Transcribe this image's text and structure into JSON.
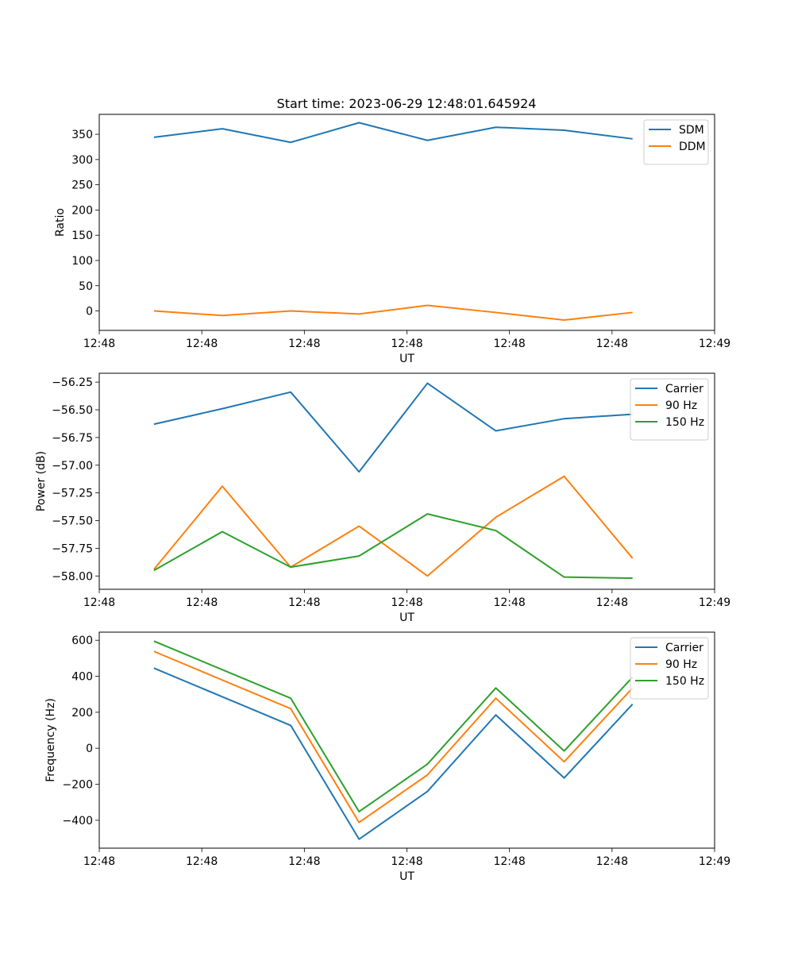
{
  "title": "Start time: 2023-06-29 12:48:01.645924",
  "colors": {
    "blue": "#1f77b4",
    "orange": "#ff7f0e",
    "green": "#2ca02c"
  },
  "chart_data": [
    {
      "type": "line",
      "title": "Start time: 2023-06-29 12:48:01.645924",
      "xlabel": "UT",
      "ylabel": "Ratio",
      "x": [
        1,
        2,
        3,
        4,
        5,
        6,
        7,
        8
      ],
      "xlim": [
        0.2,
        9.2
      ],
      "xticks": [
        {
          "value": 0.2,
          "label": "12:48"
        },
        {
          "value": 1.7,
          "label": "12:48"
        },
        {
          "value": 3.2,
          "label": "12:48"
        },
        {
          "value": 4.7,
          "label": "12:48"
        },
        {
          "value": 6.2,
          "label": "12:48"
        },
        {
          "value": 7.7,
          "label": "12:48"
        },
        {
          "value": 9.2,
          "label": "12:49"
        }
      ],
      "ylim": [
        -38.5,
        389.5
      ],
      "yticks": [
        0,
        50,
        100,
        150,
        200,
        250,
        300,
        350
      ],
      "legend": "top-right",
      "series": [
        {
          "name": "SDM",
          "color": "#1f77b4",
          "values": [
            344,
            361,
            334,
            373,
            338,
            364,
            358,
            341
          ]
        },
        {
          "name": "DDM",
          "color": "#ff7f0e",
          "values": [
            0,
            -9,
            0,
            -6,
            11,
            -3,
            -18,
            -3
          ]
        }
      ]
    },
    {
      "type": "line",
      "xlabel": "UT",
      "ylabel": "Power (dB)",
      "x": [
        1,
        2,
        3,
        4,
        5,
        6,
        7,
        8
      ],
      "xlim": [
        0.2,
        9.2
      ],
      "xticks": [
        {
          "value": 0.2,
          "label": "12:48"
        },
        {
          "value": 1.7,
          "label": "12:48"
        },
        {
          "value": 3.2,
          "label": "12:48"
        },
        {
          "value": 4.7,
          "label": "12:48"
        },
        {
          "value": 6.2,
          "label": "12:48"
        },
        {
          "value": 7.7,
          "label": "12:48"
        },
        {
          "value": 9.2,
          "label": "12:49"
        }
      ],
      "ylim": [
        -58.12,
        -56.17
      ],
      "yticks": [
        -58.0,
        -57.75,
        -57.5,
        -57.25,
        -57.0,
        -56.75,
        -56.5,
        -56.25
      ],
      "yticklabels": [
        "−58.00",
        "−57.75",
        "−57.50",
        "−57.25",
        "−57.00",
        "−56.75",
        "−56.50",
        "−56.25"
      ],
      "legend": "top-right",
      "series": [
        {
          "name": "Carrier",
          "color": "#1f77b4",
          "values": [
            -56.63,
            -56.49,
            -56.34,
            -57.06,
            -56.26,
            -56.69,
            -56.58,
            -56.54
          ]
        },
        {
          "name": "90 Hz",
          "color": "#ff7f0e",
          "values": [
            -57.94,
            -57.19,
            -57.92,
            -57.55,
            -58.0,
            -57.47,
            -57.1,
            -57.84
          ]
        },
        {
          "name": "150 Hz",
          "color": "#2ca02c",
          "values": [
            -57.95,
            -57.6,
            -57.92,
            -57.82,
            -57.44,
            -57.59,
            -58.01,
            -58.02
          ]
        }
      ]
    },
    {
      "type": "line",
      "xlabel": "UT",
      "ylabel": "Frequency (Hz)",
      "x": [
        1,
        2,
        3,
        4,
        5,
        6,
        7,
        8
      ],
      "xlim": [
        0.2,
        9.2
      ],
      "xticks": [
        {
          "value": 0.2,
          "label": "12:48"
        },
        {
          "value": 1.7,
          "label": "12:48"
        },
        {
          "value": 3.2,
          "label": "12:48"
        },
        {
          "value": 4.7,
          "label": "12:48"
        },
        {
          "value": 6.2,
          "label": "12:48"
        },
        {
          "value": 7.7,
          "label": "12:48"
        },
        {
          "value": 9.2,
          "label": "12:49"
        }
      ],
      "ylim": [
        -555,
        645
      ],
      "yticks": [
        -400,
        -200,
        0,
        200,
        400,
        600
      ],
      "yticklabels": [
        "−400",
        "−200",
        "0",
        "200",
        "400",
        "600"
      ],
      "legend": "top-right",
      "series": [
        {
          "name": "Carrier",
          "color": "#1f77b4",
          "values": [
            445,
            null,
            127,
            -505,
            -240,
            185,
            -165,
            245
          ]
        },
        {
          "name": "90 Hz",
          "color": "#ff7f0e",
          "values": [
            538,
            null,
            220,
            -412,
            -148,
            278,
            -75,
            335
          ]
        },
        {
          "name": "150 Hz",
          "color": "#2ca02c",
          "values": [
            595,
            null,
            278,
            -352,
            -88,
            335,
            -15,
            395
          ]
        }
      ]
    }
  ]
}
